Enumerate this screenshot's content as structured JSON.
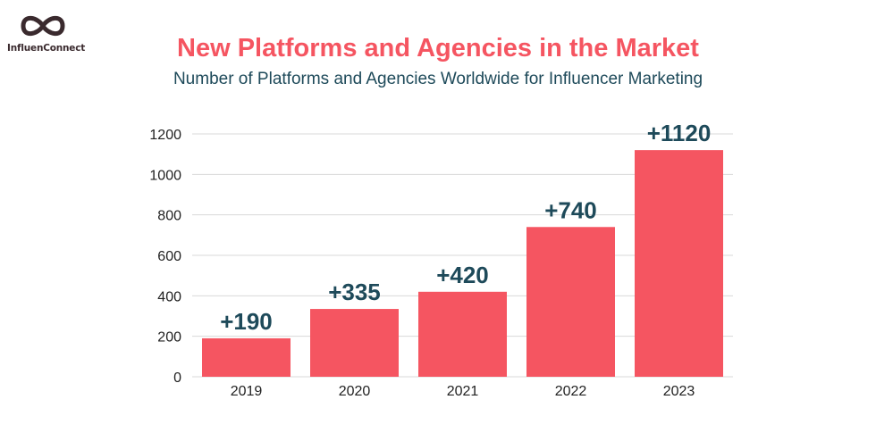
{
  "brand": {
    "name": "InfluenConnect",
    "logo_icon": "infinity-icon",
    "logo_color": "#3a2a2e"
  },
  "colors": {
    "title": "#f55561",
    "subtitle": "#1e4a5a",
    "bar": "#f55561",
    "grid": "#d8d8d8",
    "data_label": "#1e4a5a"
  },
  "chart_data": {
    "type": "bar",
    "title": "New Platforms and Agencies in the Market",
    "subtitle": "Number of Platforms and Agencies Worldwide for Influencer Marketing",
    "xlabel": "",
    "ylabel": "",
    "categories": [
      "2019",
      "2020",
      "2021",
      "2022",
      "2023"
    ],
    "values": [
      190,
      335,
      420,
      740,
      1120
    ],
    "data_labels": [
      "+190",
      "+335",
      "+420",
      "+740",
      "+1120"
    ],
    "ylim": [
      0,
      1200
    ],
    "yticks": [
      0,
      200,
      400,
      600,
      800,
      1000,
      1200
    ],
    "grid": true,
    "legend": "none"
  }
}
